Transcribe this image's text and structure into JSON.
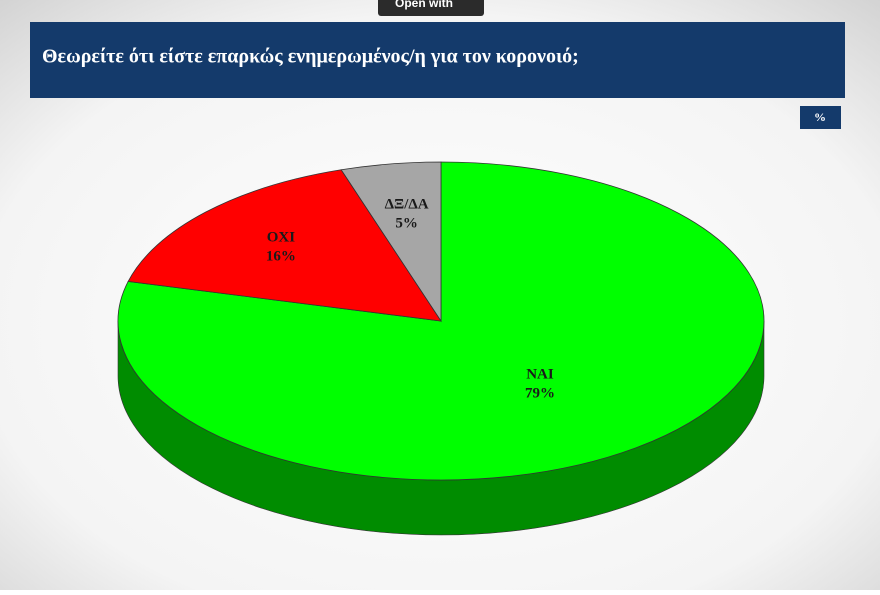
{
  "toolbar": {
    "button": "Open with"
  },
  "chart_data": {
    "type": "pie3d",
    "title": "Θεωρείτε ότι είστε επαρκώς ενημερωμένος/η για τον κορονοιό;",
    "unit": "%",
    "categories": [
      "ΝΑΙ",
      "ΟΧΙ",
      "ΔΞ/ΔΑ"
    ],
    "values": [
      79,
      16,
      5
    ],
    "value_labels": [
      "79%",
      "16%",
      "5%"
    ],
    "colors": [
      "#00ff00",
      "#ff0000",
      "#a6a6a6"
    ]
  }
}
